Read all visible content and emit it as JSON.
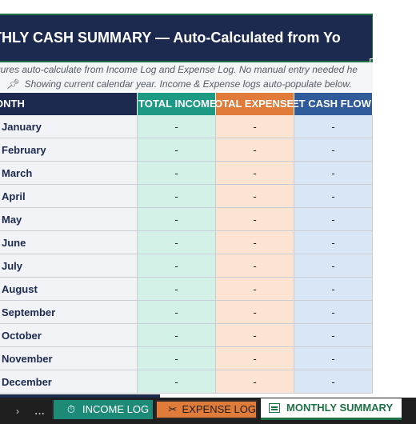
{
  "title": "THLY CASH SUMMARY — Auto-Calculated from Yo",
  "notes": {
    "line1": "gures auto-calculate from Income Log and Expense Log. No manual entry needed he",
    "line2_icon": "pin-icon",
    "line2": "Showing current calendar year. Income & Expense logs auto-populate below."
  },
  "headers": {
    "month": "ONTH",
    "income": "TOTAL INCOME",
    "expense": "OTAL EXPENSE",
    "net": "ET CASH FLOW"
  },
  "rows": [
    {
      "month": "January",
      "income": "-",
      "expense": "-",
      "net": "-"
    },
    {
      "month": "February",
      "income": "-",
      "expense": "-",
      "net": "-"
    },
    {
      "month": "March",
      "income": "-",
      "expense": "-",
      "net": "-"
    },
    {
      "month": "April",
      "income": "-",
      "expense": "-",
      "net": "-"
    },
    {
      "month": "May",
      "income": "-",
      "expense": "-",
      "net": "-"
    },
    {
      "month": "June",
      "income": "-",
      "expense": "-",
      "net": "-"
    },
    {
      "month": "July",
      "income": "-",
      "expense": "-",
      "net": "-"
    },
    {
      "month": "August",
      "income": "-",
      "expense": "-",
      "net": "-"
    },
    {
      "month": "September",
      "income": "-",
      "expense": "-",
      "net": "-"
    },
    {
      "month": "October",
      "income": "-",
      "expense": "-",
      "net": "-"
    },
    {
      "month": "November",
      "income": "-",
      "expense": "-",
      "net": "-"
    },
    {
      "month": "December",
      "income": "-",
      "expense": "-",
      "net": "-"
    }
  ],
  "tabs": {
    "prev_icon": "chevron-right-icon",
    "more": "...",
    "income": {
      "label": "INCOME LOG",
      "icon": "stopwatch-icon"
    },
    "expense": {
      "label": "EXPENSE LOG",
      "icon": "receipt-icon"
    },
    "monthly": {
      "label": "MONTHLY SUMMARY",
      "icon": "sheet-icon"
    }
  },
  "colors": {
    "navy": "#1b2a4e",
    "income_teal": "#1d9a83",
    "expense_orange": "#e07b39",
    "net_blue": "#2f5b9a",
    "selection_green": "#1e7145"
  }
}
